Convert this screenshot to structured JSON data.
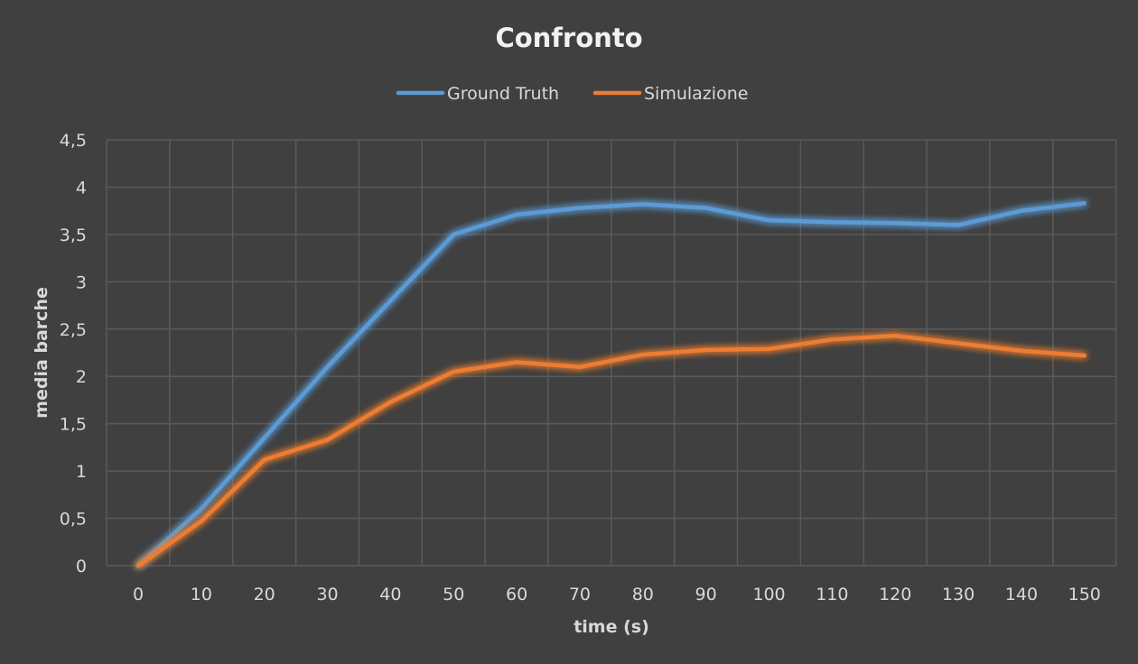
{
  "chart_data": {
    "type": "line",
    "title": "Confronto",
    "xlabel": "time (s)",
    "ylabel": "media barche",
    "x": [
      0,
      10,
      20,
      30,
      40,
      50,
      60,
      70,
      80,
      90,
      100,
      110,
      120,
      130,
      140,
      150
    ],
    "x_tick_labels": [
      "0",
      "10",
      "20",
      "30",
      "40",
      "50",
      "60",
      "70",
      "80",
      "90",
      "100",
      "110",
      "120",
      "130",
      "140",
      "150"
    ],
    "ylim": [
      0,
      4.5
    ],
    "y_ticks": [
      0,
      0.5,
      1,
      1.5,
      2,
      2.5,
      3,
      3.5,
      4,
      4.5
    ],
    "y_tick_labels": [
      "0",
      "0,5",
      "1",
      "1,5",
      "2",
      "2,5",
      "3",
      "3,5",
      "4",
      "4,5"
    ],
    "grid": true,
    "legend_position": "top-center",
    "series": [
      {
        "name": "Ground Truth",
        "color": "#5b9bd5",
        "values": [
          0,
          0.6,
          1.35,
          2.1,
          2.8,
          3.5,
          3.71,
          3.78,
          3.82,
          3.78,
          3.65,
          3.63,
          3.62,
          3.6,
          3.75,
          3.83
        ]
      },
      {
        "name": "Simulazione",
        "color": "#ed7d31",
        "values": [
          0,
          0.47,
          1.12,
          1.33,
          1.73,
          2.05,
          2.15,
          2.1,
          2.23,
          2.28,
          2.29,
          2.39,
          2.43,
          2.35,
          2.27,
          2.22
        ]
      }
    ]
  }
}
